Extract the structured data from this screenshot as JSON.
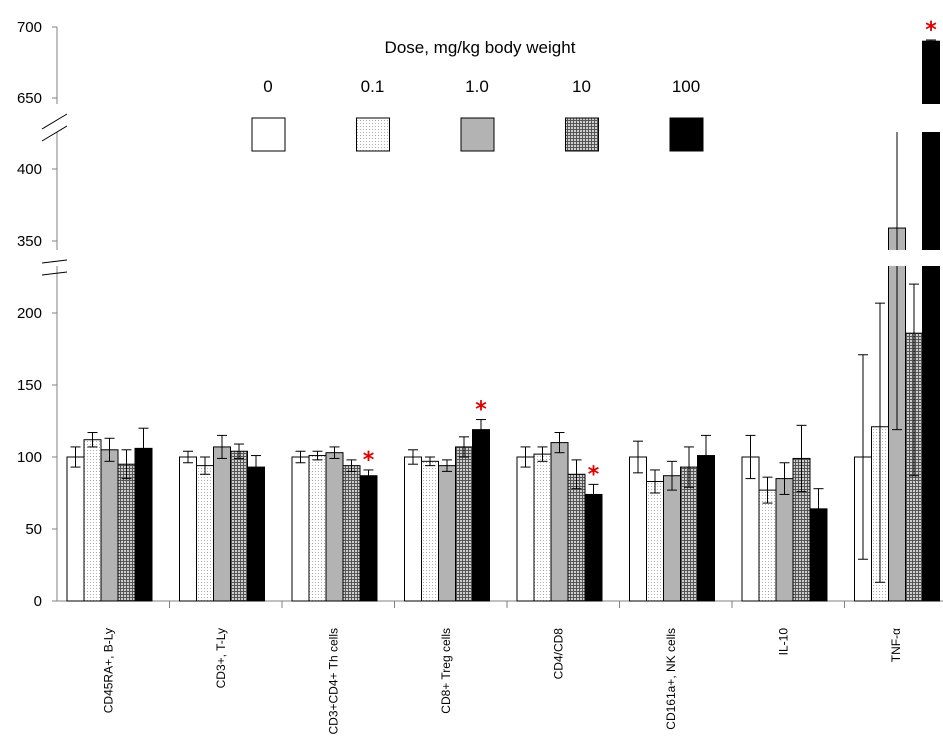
{
  "chart_data": {
    "type": "bar",
    "title": "",
    "xlabel": "",
    "ylabel": "",
    "ylim": [
      0,
      700
    ],
    "axis_breaks": [
      [
        200,
        350
      ],
      [
        400,
        650
      ]
    ],
    "y_ticks": [
      "0",
      "50",
      "100",
      "150",
      "200",
      "350",
      "400",
      "650",
      "700"
    ],
    "categories": [
      "CD45RA+, B-Ly",
      "CD3+, T-Ly",
      "CD3+CD4+ Th cells",
      "CD8+ Treg cells",
      "CD4/CD8",
      "CD161a+, NK cells",
      "IL-10",
      "TNF-α"
    ],
    "legend": {
      "title": "Dose, mg/kg body weight",
      "position": "top-center"
    },
    "series": [
      {
        "name": "0",
        "values": [
          100,
          100,
          100,
          100,
          100,
          100,
          100,
          100
        ],
        "errors": [
          7,
          4,
          4,
          5,
          7,
          11,
          15,
          71
        ],
        "fill": "white"
      },
      {
        "name": "0.1",
        "values": [
          112,
          94,
          101,
          97,
          102,
          83,
          77,
          121
        ],
        "errors": [
          5,
          6,
          3,
          3,
          5,
          8,
          9,
          108
        ],
        "fill": "dots"
      },
      {
        "name": "1.0",
        "values": [
          105,
          107,
          103,
          94,
          110,
          87,
          85,
          359
        ],
        "errors": [
          8,
          8,
          4,
          4,
          7,
          10,
          11,
          240
        ],
        "fill": "gray"
      },
      {
        "name": "10",
        "values": [
          95,
          104,
          94,
          107,
          88,
          93,
          99,
          186
        ],
        "errors": [
          10,
          5,
          4,
          7,
          10,
          14,
          23,
          99
        ],
        "fill": "grid"
      },
      {
        "name": "100",
        "values": [
          106,
          93,
          87,
          119,
          74,
          101,
          64,
          690
        ],
        "errors": [
          14,
          8,
          4,
          7,
          7,
          14,
          14,
          270
        ],
        "fill": "black"
      }
    ],
    "significance": [
      {
        "category": "CD3+CD4+ Th cells",
        "series": "100",
        "mark": "*"
      },
      {
        "category": "CD8+ Treg cells",
        "series": "100",
        "mark": "*"
      },
      {
        "category": "CD4/CD8",
        "series": "100",
        "mark": "*"
      },
      {
        "category": "TNF-α",
        "series": "100",
        "mark": "*"
      }
    ],
    "colors": {
      "axis": "#808080",
      "bar_stroke": "#000000",
      "gray_fill": "#b3b3b3",
      "black_fill": "#000000",
      "star": "#e00000"
    }
  }
}
